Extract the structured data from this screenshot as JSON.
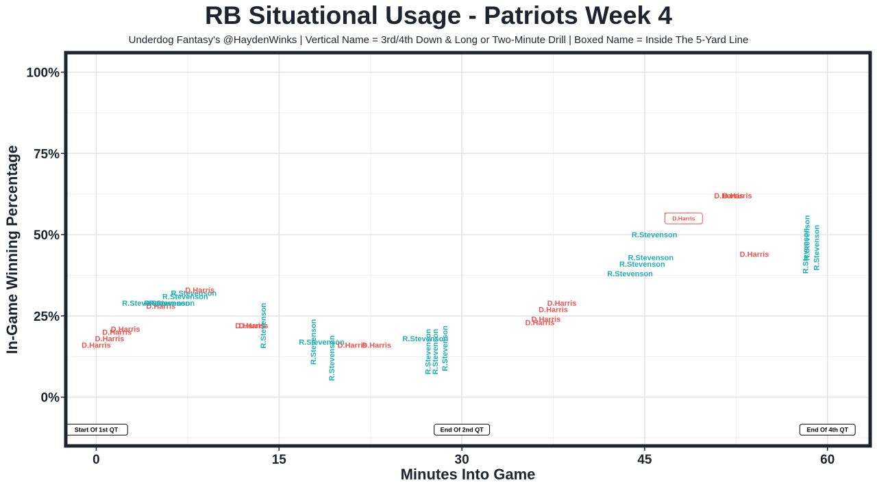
{
  "chart_data": {
    "type": "scatter",
    "title": "RB Situational Usage - Patriots Week 4",
    "subtitle": "Underdog Fantasy's @HaydenWinks | Vertical Name = 3rd/4th Down & Long or Two-Minute Drill | Boxed Name = Inside The 5-Yard Line",
    "xlabel": "Minutes Into Game",
    "ylabel": "In-Game Winning Percentage",
    "xlim": [
      -2.5,
      63.5
    ],
    "ylim": [
      -15,
      106
    ],
    "x_ticks": [
      0,
      15,
      30,
      45,
      60
    ],
    "x_tick_labels": [
      "0",
      "15",
      "30",
      "45",
      "60"
    ],
    "y_ticks": [
      0,
      25,
      50,
      75,
      100
    ],
    "y_tick_labels": [
      "0%",
      "25%",
      "50%",
      "75%",
      "100%"
    ],
    "colors": {
      "D.Harris": "#f0544f",
      "R.Stevenson": "#1fb0b3",
      "text": "#1e232d",
      "frame": "#1e232d"
    },
    "annotations": [
      {
        "x": 0,
        "y": -10,
        "label": "Start Of 1st QT"
      },
      {
        "x": 30,
        "y": -10,
        "label": "End Of 2nd QT"
      },
      {
        "x": 60,
        "y": -10,
        "label": "End Of 4th QT"
      }
    ],
    "points": [
      {
        "x": 0.0,
        "y": 16,
        "player": "D.Harris",
        "vertical": false,
        "boxed": false
      },
      {
        "x": 1.1,
        "y": 18,
        "player": "D.Harris",
        "vertical": false,
        "boxed": false
      },
      {
        "x": 1.7,
        "y": 20,
        "player": "D.Harris",
        "vertical": false,
        "boxed": false
      },
      {
        "x": 2.4,
        "y": 21,
        "player": "D.Harris",
        "vertical": false,
        "boxed": false
      },
      {
        "x": 4.0,
        "y": 29,
        "player": "R.Stevenson",
        "vertical": false,
        "boxed": false
      },
      {
        "x": 5.3,
        "y": 28,
        "player": "D.Harris",
        "vertical": false,
        "boxed": false
      },
      {
        "x": 5.8,
        "y": 29,
        "player": "R.Stevenson",
        "vertical": false,
        "boxed": false
      },
      {
        "x": 6.2,
        "y": 29,
        "player": "R.Stevenson",
        "vertical": false,
        "boxed": false
      },
      {
        "x": 7.3,
        "y": 31,
        "player": "R.Stevenson",
        "vertical": false,
        "boxed": false
      },
      {
        "x": 8.0,
        "y": 32,
        "player": "R.Stevenson",
        "vertical": false,
        "boxed": false
      },
      {
        "x": 8.5,
        "y": 33,
        "player": "D.Harris",
        "vertical": false,
        "boxed": false
      },
      {
        "x": 12.6,
        "y": 22,
        "player": "D.Harris",
        "vertical": false,
        "boxed": false
      },
      {
        "x": 12.9,
        "y": 22,
        "player": "D.Harris",
        "vertical": false,
        "boxed": false
      },
      {
        "x": 13.7,
        "y": 22,
        "player": "R.Stevenson",
        "vertical": true,
        "boxed": false
      },
      {
        "x": 17.8,
        "y": 17,
        "player": "R.Stevenson",
        "vertical": true,
        "boxed": false
      },
      {
        "x": 18.5,
        "y": 17,
        "player": "R.Stevenson",
        "vertical": false,
        "boxed": false
      },
      {
        "x": 19.3,
        "y": 12,
        "player": "R.Stevenson",
        "vertical": true,
        "boxed": false
      },
      {
        "x": 21.0,
        "y": 16,
        "player": "D.Harris",
        "vertical": false,
        "boxed": false
      },
      {
        "x": 23.0,
        "y": 16,
        "player": "D.Harris",
        "vertical": false,
        "boxed": false
      },
      {
        "x": 27.0,
        "y": 18,
        "player": "R.Stevenson",
        "vertical": false,
        "boxed": false
      },
      {
        "x": 27.2,
        "y": 14,
        "player": "R.Stevenson",
        "vertical": true,
        "boxed": false
      },
      {
        "x": 27.8,
        "y": 14,
        "player": "R.Stevenson",
        "vertical": true,
        "boxed": false
      },
      {
        "x": 28.6,
        "y": 15,
        "player": "R.Stevenson",
        "vertical": true,
        "boxed": false
      },
      {
        "x": 36.4,
        "y": 23,
        "player": "D.Harris",
        "vertical": false,
        "boxed": false
      },
      {
        "x": 36.9,
        "y": 24,
        "player": "D.Harris",
        "vertical": false,
        "boxed": false
      },
      {
        "x": 37.5,
        "y": 27,
        "player": "D.Harris",
        "vertical": false,
        "boxed": false
      },
      {
        "x": 38.2,
        "y": 29,
        "player": "D.Harris",
        "vertical": false,
        "boxed": false
      },
      {
        "x": 43.8,
        "y": 38,
        "player": "R.Stevenson",
        "vertical": false,
        "boxed": false
      },
      {
        "x": 44.8,
        "y": 41,
        "player": "R.Stevenson",
        "vertical": false,
        "boxed": false
      },
      {
        "x": 45.5,
        "y": 43,
        "player": "R.Stevenson",
        "vertical": false,
        "boxed": false
      },
      {
        "x": 45.8,
        "y": 50,
        "player": "R.Stevenson",
        "vertical": false,
        "boxed": false
      },
      {
        "x": 47.8,
        "y": 56,
        "player": "D.Harris",
        "vertical": false,
        "boxed": false
      },
      {
        "x": 48.2,
        "y": 55,
        "player": "D.Harris",
        "vertical": false,
        "boxed": true
      },
      {
        "x": 51.9,
        "y": 62,
        "player": "D.Harris",
        "vertical": false,
        "boxed": false
      },
      {
        "x": 52.6,
        "y": 62,
        "player": "D.Harris",
        "vertical": false,
        "boxed": false
      },
      {
        "x": 54.0,
        "y": 44,
        "player": "D.Harris",
        "vertical": false,
        "boxed": false
      },
      {
        "x": 58.2,
        "y": 45,
        "player": "R.Stevenson",
        "vertical": true,
        "boxed": false
      },
      {
        "x": 58.3,
        "y": 49,
        "player": "R.Stevenson",
        "vertical": true,
        "boxed": false
      },
      {
        "x": 59.1,
        "y": 46,
        "player": "R.Stevenson",
        "vertical": true,
        "boxed": false
      }
    ]
  }
}
